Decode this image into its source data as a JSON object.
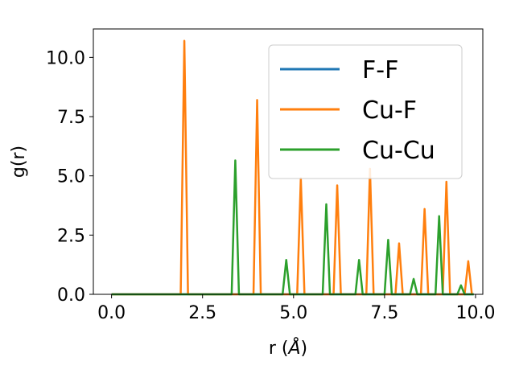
{
  "chart_data": {
    "type": "line",
    "title": "",
    "xlabel": "r (",
    "xlabel_unit": "Å",
    "xlabel_close": ")",
    "ylabel": "g(r)",
    "xlim": [
      -0.5,
      10.2
    ],
    "ylim": [
      0,
      11.2
    ],
    "xticks": [
      0.0,
      2.5,
      5.0,
      7.5,
      10.0
    ],
    "xtick_labels": [
      "0.0",
      "2.5",
      "5.0",
      "7.5",
      "10.0"
    ],
    "yticks": [
      0.0,
      2.5,
      5.0,
      7.5,
      10.0
    ],
    "ytick_labels": [
      "0.0",
      "2.5",
      "5.0",
      "7.5",
      "10.0"
    ],
    "grid": false,
    "legend_position": "top-right",
    "series": [
      {
        "name": "F-F",
        "color": "#1f77b4",
        "points": [
          [
            0.0,
            0.0
          ],
          [
            9.95,
            0.0
          ]
        ]
      },
      {
        "name": "Cu-F",
        "color": "#ff7f0e",
        "points": [
          [
            0.0,
            0.0
          ],
          [
            1.9,
            0.0
          ],
          [
            2.0,
            10.7
          ],
          [
            2.1,
            0.0
          ],
          [
            3.9,
            0.0
          ],
          [
            4.0,
            8.2
          ],
          [
            4.1,
            0.0
          ],
          [
            5.1,
            0.0
          ],
          [
            5.2,
            4.9
          ],
          [
            5.3,
            0.0
          ],
          [
            6.1,
            0.0
          ],
          [
            6.2,
            4.6
          ],
          [
            6.3,
            0.0
          ],
          [
            7.0,
            0.0
          ],
          [
            7.1,
            5.3
          ],
          [
            7.2,
            0.0
          ],
          [
            7.8,
            0.0
          ],
          [
            7.9,
            2.15
          ],
          [
            8.0,
            0.0
          ],
          [
            8.5,
            0.0
          ],
          [
            8.6,
            3.6
          ],
          [
            8.7,
            0.0
          ],
          [
            9.1,
            0.0
          ],
          [
            9.2,
            4.75
          ],
          [
            9.3,
            0.0
          ],
          [
            9.7,
            0.0
          ],
          [
            9.8,
            1.4
          ],
          [
            9.9,
            0.0
          ]
        ]
      },
      {
        "name": "Cu-Cu",
        "color": "#2ca02c",
        "points": [
          [
            0.0,
            0.0
          ],
          [
            3.3,
            0.0
          ],
          [
            3.4,
            5.65
          ],
          [
            3.5,
            0.0
          ],
          [
            4.7,
            0.0
          ],
          [
            4.8,
            1.45
          ],
          [
            4.9,
            0.0
          ],
          [
            5.8,
            0.0
          ],
          [
            5.9,
            3.8
          ],
          [
            6.0,
            0.0
          ],
          [
            6.7,
            0.0
          ],
          [
            6.8,
            1.45
          ],
          [
            6.9,
            0.0
          ],
          [
            7.5,
            0.0
          ],
          [
            7.6,
            2.3
          ],
          [
            7.7,
            0.0
          ],
          [
            8.2,
            0.0
          ],
          [
            8.3,
            0.65
          ],
          [
            8.4,
            0.0
          ],
          [
            8.9,
            0.0
          ],
          [
            9.0,
            3.3
          ],
          [
            9.1,
            0.0
          ],
          [
            9.5,
            0.0
          ],
          [
            9.6,
            0.38
          ],
          [
            9.7,
            0.0
          ],
          [
            9.95,
            0.0
          ]
        ]
      }
    ]
  }
}
